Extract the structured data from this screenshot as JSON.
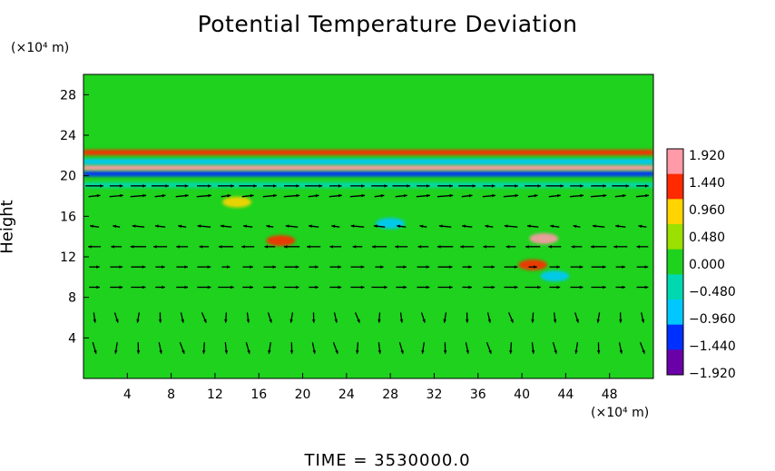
{
  "chart_data": {
    "type": "heatmap",
    "title": "Potential Temperature Deviation",
    "ylabel": "Height",
    "y_unit_label": "(×10⁴ m)",
    "x_unit_label": "(×10⁴ m)",
    "footer": "TIME = 3530000.0",
    "xlim": [
      0,
      52
    ],
    "ylim": [
      0,
      30
    ],
    "x_ticks": [
      4,
      8,
      12,
      16,
      20,
      24,
      28,
      32,
      36,
      40,
      44,
      48
    ],
    "x_tick_labels": [
      "4",
      "8",
      "12",
      "16",
      "20",
      "24",
      "28",
      "32",
      "36",
      "40",
      "44",
      "48"
    ],
    "y_ticks": [
      4,
      8,
      12,
      16,
      20,
      24,
      28
    ],
    "y_tick_labels": [
      "4",
      "8",
      "12",
      "16",
      "20",
      "24",
      "28"
    ],
    "colorbar": {
      "labels": [
        "1.920",
        "1.440",
        "0.960",
        "0.480",
        "0.000",
        "−0.480",
        "−0.960",
        "−1.440",
        "−1.920"
      ],
      "values": [
        1.92,
        1.44,
        0.96,
        0.48,
        0.0,
        -0.48,
        -0.96,
        -1.44,
        -1.92
      ],
      "colors": [
        "#ff9aa8",
        "#ff2a00",
        "#ffd400",
        "#9be000",
        "#1ed21e",
        "#00d8b0",
        "#00c8ff",
        "#0030ff",
        "#6a00a8"
      ]
    },
    "background_color": "#1ed21e",
    "features": [
      {
        "kind": "band",
        "y": 20.2,
        "value": -1.6
      },
      {
        "kind": "band",
        "y": 20.8,
        "value": 1.9
      },
      {
        "kind": "band",
        "y": 21.4,
        "value": -1.2
      },
      {
        "kind": "band",
        "y": 22.3,
        "value": 1.2
      },
      {
        "kind": "band",
        "y": 19.1,
        "value": -0.6
      },
      {
        "kind": "blob",
        "x": 42,
        "y": 13.8,
        "value": 1.7
      },
      {
        "kind": "blob",
        "x": 41,
        "y": 11.2,
        "value": 1.3
      },
      {
        "kind": "blob",
        "x": 18,
        "y": 13.6,
        "value": 1.2
      },
      {
        "kind": "blob",
        "x": 14,
        "y": 17.4,
        "value": 1.0
      },
      {
        "kind": "blob",
        "x": 28,
        "y": 15.3,
        "value": -0.8
      },
      {
        "kind": "blob",
        "x": 43,
        "y": 10.1,
        "value": -1.0
      }
    ],
    "wind_arrows_approx": [
      {
        "y": 19.0,
        "u": 1.2,
        "w": 0.0
      },
      {
        "y": 18.0,
        "u": 1.0,
        "w": 0.1
      },
      {
        "y": 15.0,
        "u": -0.8,
        "w": 0.1
      },
      {
        "y": 13.0,
        "u": -1.0,
        "w": 0.0
      },
      {
        "y": 11.0,
        "u": 0.9,
        "w": 0.0
      },
      {
        "y": 9.0,
        "u": 1.0,
        "w": 0.0
      },
      {
        "y": 6.0,
        "u": 0.1,
        "w": -0.8
      },
      {
        "y": 3.0,
        "u": 0.1,
        "w": -0.9
      }
    ]
  }
}
